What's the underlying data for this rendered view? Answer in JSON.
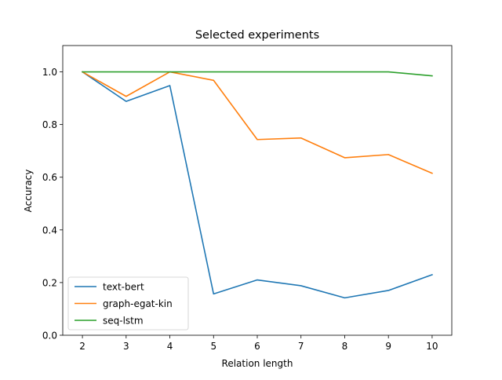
{
  "chart_data": {
    "type": "line",
    "title": "Selected experiments",
    "xlabel": "Relation length",
    "ylabel": "Accuracy",
    "x": [
      2,
      3,
      4,
      5,
      6,
      7,
      8,
      9,
      10
    ],
    "xlim": [
      1.55,
      10.45
    ],
    "ylim": [
      0.0,
      1.1
    ],
    "xticks": [
      2,
      3,
      4,
      5,
      6,
      7,
      8,
      9,
      10
    ],
    "yticks": [
      0.0,
      0.2,
      0.4,
      0.6,
      0.8,
      1.0
    ],
    "ytick_labels": [
      "0.0",
      "0.2",
      "0.4",
      "0.6",
      "0.8",
      "1.0"
    ],
    "grid": false,
    "legend_position": "lower-left",
    "series": [
      {
        "name": "text-bert",
        "color": "#1f77b4",
        "values": [
          1.0,
          0.888,
          0.948,
          0.157,
          0.21,
          0.188,
          0.142,
          0.17,
          0.23
        ]
      },
      {
        "name": "graph-egat-kin",
        "color": "#ff7f0e",
        "values": [
          1.0,
          0.907,
          1.0,
          0.968,
          0.743,
          0.749,
          0.674,
          0.686,
          0.615
        ]
      },
      {
        "name": "seq-lstm",
        "color": "#2ca02c",
        "values": [
          1.0,
          1.0,
          1.0,
          1.0,
          1.0,
          1.0,
          1.0,
          1.0,
          0.985
        ]
      }
    ]
  }
}
